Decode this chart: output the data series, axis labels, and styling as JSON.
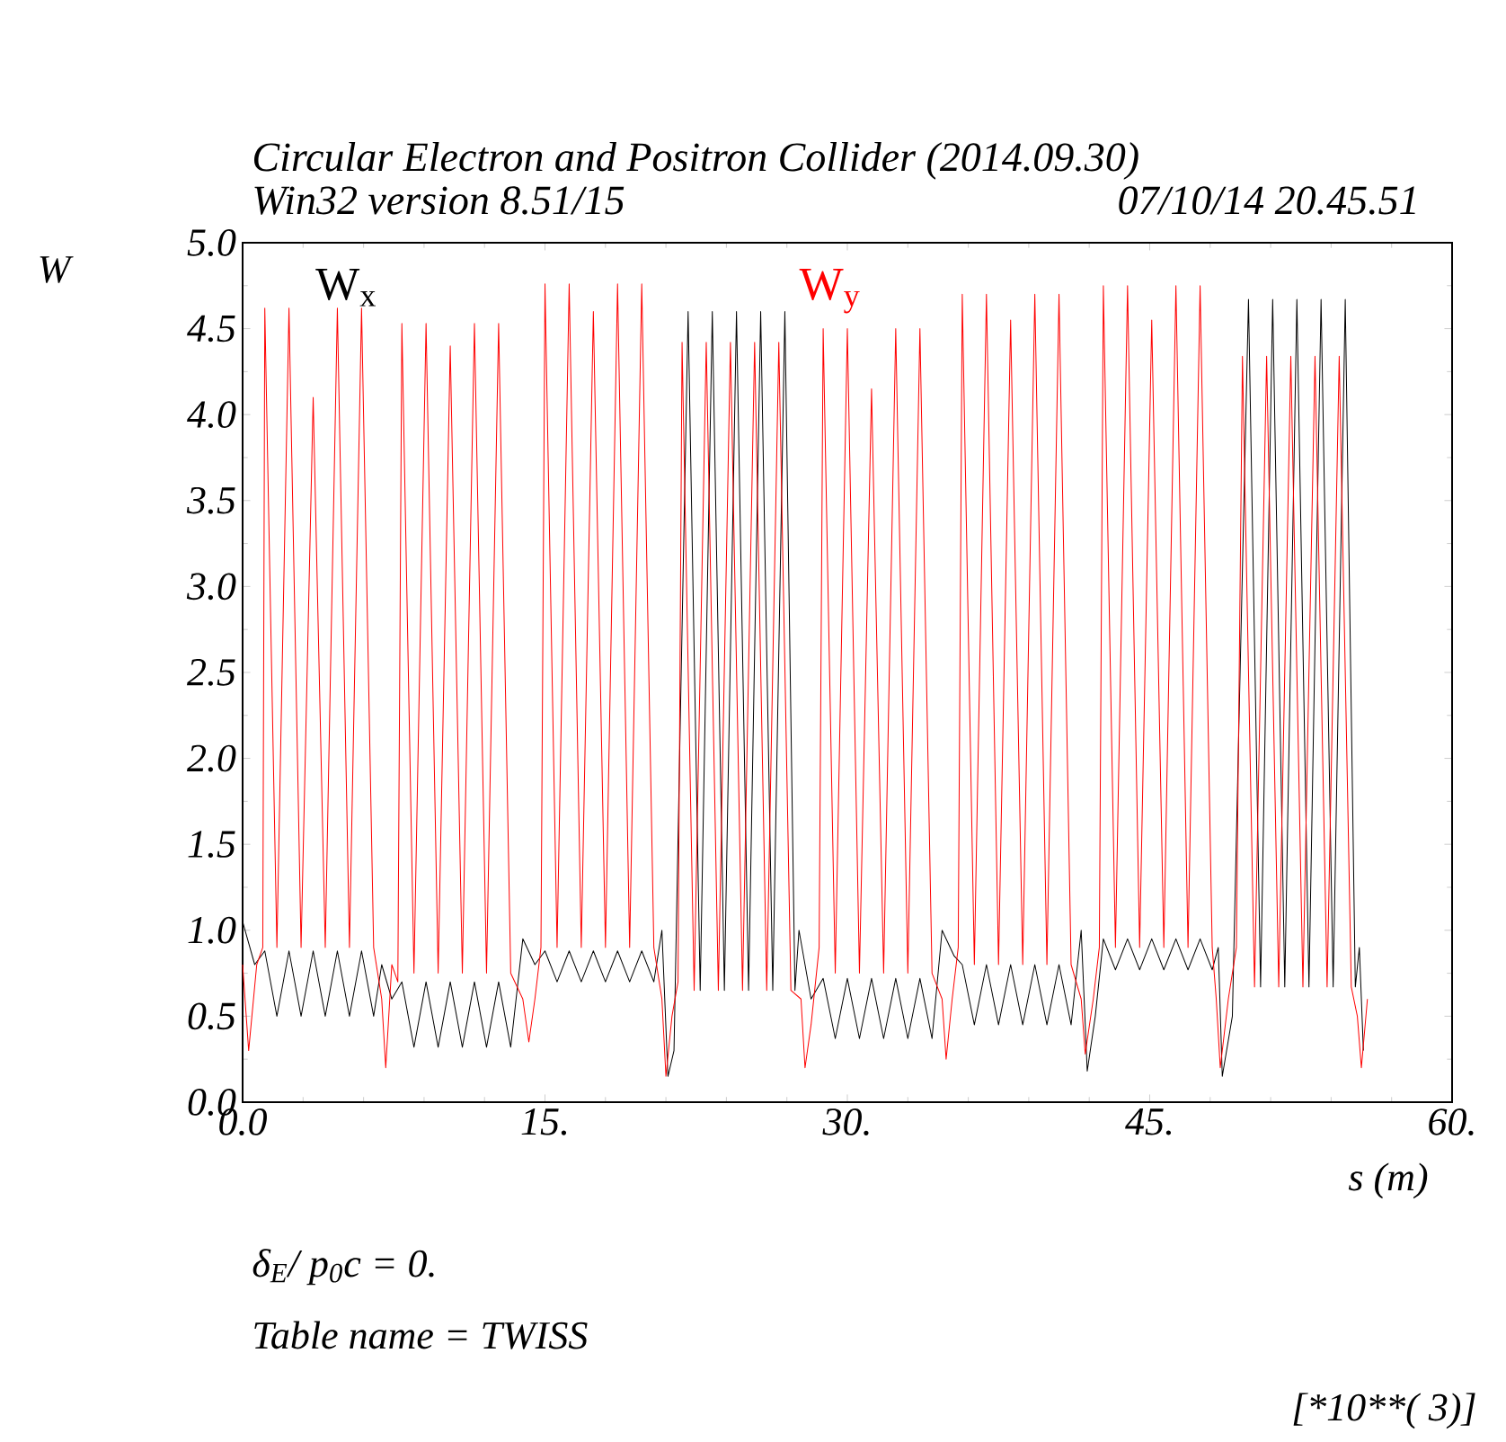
{
  "chart_data": {
    "type": "line",
    "title": "Circular Electron and Positron Collider (2014.09.30)",
    "subtitle": "Win32 version 8.51/15",
    "xlabel": "s (m)",
    "ylabel": "W",
    "annotations": [
      "07/10/14  20.45.51",
      "δ$_{E}$/ p$_{0}$c  =  0.",
      "Table name = TWISS",
      "[*10**(  3)]"
    ],
    "xlim": [
      0,
      60
    ],
    "ylim": [
      0,
      5
    ],
    "xticks": [
      {
        "value": 0,
        "label": "0.0"
      },
      {
        "value": 15,
        "label": "15."
      },
      {
        "value": 30,
        "label": "30."
      },
      {
        "value": 45,
        "label": "45."
      },
      {
        "value": 60,
        "label": "60."
      }
    ],
    "yticks": [
      {
        "value": 0,
        "label": "0.0"
      },
      {
        "value": 0.5,
        "label": "0.5"
      },
      {
        "value": 1,
        "label": "1.0"
      },
      {
        "value": 1.5,
        "label": "1.5"
      },
      {
        "value": 2,
        "label": "2.0"
      },
      {
        "value": 2.5,
        "label": "2.5"
      },
      {
        "value": 3,
        "label": "3.0"
      },
      {
        "value": 3.5,
        "label": "3.5"
      },
      {
        "value": 4,
        "label": "4.0"
      },
      {
        "value": 4.5,
        "label": "4.5"
      },
      {
        "value": 5,
        "label": "5.0"
      }
    ],
    "grid": false,
    "legend": false,
    "marker": "none",
    "line_style": "solid",
    "series": [
      {
        "name": "W$_{x}$",
        "color": "#000000",
        "x": [
          0.0,
          0.6,
          1.1,
          1.7,
          2.3,
          2.9,
          3.5,
          4.1,
          4.7,
          5.3,
          5.9,
          6.5,
          6.9,
          7.4,
          7.9,
          8.5,
          9.1,
          9.7,
          10.3,
          10.9,
          11.5,
          12.1,
          12.7,
          13.3,
          13.9,
          14.5,
          15.0,
          15.6,
          16.2,
          16.8,
          17.4,
          18.0,
          18.6,
          19.2,
          19.8,
          20.4,
          20.8,
          21.1,
          21.4,
          22.1,
          22.7,
          23.3,
          23.9,
          24.5,
          25.1,
          25.7,
          26.3,
          26.9,
          27.4,
          27.6,
          28.2,
          28.8,
          29.4,
          30.0,
          30.6,
          31.2,
          31.8,
          32.4,
          33.0,
          33.6,
          34.2,
          34.7,
          35.3,
          35.7,
          36.3,
          36.9,
          37.5,
          38.1,
          38.7,
          39.3,
          39.9,
          40.5,
          41.1,
          41.6,
          41.9,
          42.3,
          42.7,
          43.3,
          43.9,
          44.5,
          45.1,
          45.7,
          46.3,
          46.9,
          47.5,
          48.1,
          48.4,
          48.6,
          49.1,
          49.9,
          50.5,
          51.1,
          51.7,
          52.3,
          52.9,
          53.5,
          54.1,
          54.7,
          55.2,
          55.4,
          55.6
        ],
        "values": [
          1.05,
          0.8,
          0.88,
          0.5,
          0.88,
          0.5,
          0.88,
          0.5,
          0.88,
          0.5,
          0.88,
          0.5,
          0.8,
          0.6,
          0.7,
          0.32,
          0.7,
          0.32,
          0.7,
          0.32,
          0.7,
          0.32,
          0.7,
          0.32,
          0.95,
          0.8,
          0.88,
          0.7,
          0.88,
          0.7,
          0.88,
          0.7,
          0.88,
          0.7,
          0.88,
          0.7,
          1.0,
          0.15,
          0.3,
          4.6,
          0.65,
          4.6,
          0.65,
          4.6,
          0.65,
          4.6,
          0.65,
          4.6,
          0.65,
          1.0,
          0.6,
          0.72,
          0.37,
          0.72,
          0.37,
          0.72,
          0.37,
          0.72,
          0.37,
          0.72,
          0.37,
          1.0,
          0.85,
          0.8,
          0.45,
          0.8,
          0.45,
          0.8,
          0.45,
          0.8,
          0.45,
          0.8,
          0.45,
          1.0,
          0.18,
          0.5,
          0.95,
          0.77,
          0.95,
          0.77,
          0.95,
          0.77,
          0.95,
          0.77,
          0.95,
          0.77,
          0.9,
          0.15,
          0.5,
          4.67,
          0.67,
          4.67,
          0.67,
          4.67,
          0.67,
          4.67,
          0.67,
          4.67,
          0.67,
          0.9,
          0.3
        ]
      },
      {
        "name": "W$_{y}$",
        "color": "#ff0000",
        "x": [
          0.0,
          0.3,
          0.7,
          1.0,
          1.1,
          1.7,
          2.3,
          2.9,
          3.5,
          4.1,
          4.7,
          5.3,
          5.9,
          6.5,
          6.9,
          7.1,
          7.4,
          7.7,
          7.9,
          8.5,
          9.1,
          9.7,
          10.3,
          10.9,
          11.5,
          12.1,
          12.7,
          13.3,
          13.9,
          14.2,
          14.5,
          14.8,
          15.0,
          15.6,
          16.2,
          16.8,
          17.4,
          18.0,
          18.6,
          19.2,
          19.8,
          20.4,
          20.8,
          21.0,
          21.3,
          21.6,
          21.8,
          22.4,
          23.0,
          23.6,
          24.2,
          24.8,
          25.4,
          26.0,
          26.6,
          27.2,
          27.7,
          27.9,
          28.2,
          28.6,
          28.8,
          29.4,
          30.0,
          30.6,
          31.2,
          31.8,
          32.4,
          33.0,
          33.6,
          34.2,
          34.7,
          34.9,
          35.2,
          35.5,
          35.7,
          36.3,
          36.9,
          37.5,
          38.1,
          38.7,
          39.3,
          39.9,
          40.5,
          41.1,
          41.6,
          41.8,
          42.2,
          42.5,
          42.7,
          43.3,
          43.9,
          44.5,
          45.1,
          45.7,
          46.3,
          46.9,
          47.5,
          48.1,
          48.3,
          48.5,
          48.9,
          49.3,
          49.6,
          50.2,
          50.8,
          51.4,
          52.0,
          52.6,
          53.2,
          53.8,
          54.4,
          55.0,
          55.3,
          55.5,
          55.8
        ],
        "values": [
          0.8,
          0.3,
          0.8,
          0.9,
          4.62,
          0.9,
          4.62,
          0.9,
          4.1,
          0.9,
          4.62,
          0.9,
          4.62,
          0.9,
          0.6,
          0.2,
          0.8,
          0.7,
          4.53,
          0.75,
          4.53,
          0.75,
          4.4,
          0.75,
          4.53,
          0.75,
          4.53,
          0.75,
          0.6,
          0.35,
          0.6,
          0.9,
          4.76,
          0.9,
          4.76,
          0.9,
          4.6,
          0.9,
          4.76,
          0.9,
          4.76,
          0.9,
          0.6,
          0.15,
          0.5,
          0.7,
          4.42,
          0.65,
          4.42,
          0.65,
          4.42,
          0.65,
          4.42,
          0.65,
          4.42,
          0.65,
          0.6,
          0.2,
          0.45,
          0.9,
          4.5,
          0.75,
          4.5,
          0.75,
          4.15,
          0.75,
          4.5,
          0.75,
          4.5,
          0.75,
          0.6,
          0.25,
          0.6,
          0.9,
          4.7,
          0.8,
          4.7,
          0.8,
          4.55,
          0.8,
          4.7,
          0.8,
          4.7,
          0.8,
          0.6,
          0.28,
          0.6,
          0.9,
          4.75,
          0.9,
          4.75,
          0.9,
          4.55,
          0.9,
          4.75,
          0.9,
          4.75,
          0.9,
          0.6,
          0.2,
          0.6,
          0.9,
          4.34,
          0.67,
          4.34,
          0.67,
          4.34,
          0.67,
          4.34,
          0.67,
          4.34,
          0.67,
          0.5,
          0.2,
          0.6
        ]
      }
    ]
  }
}
